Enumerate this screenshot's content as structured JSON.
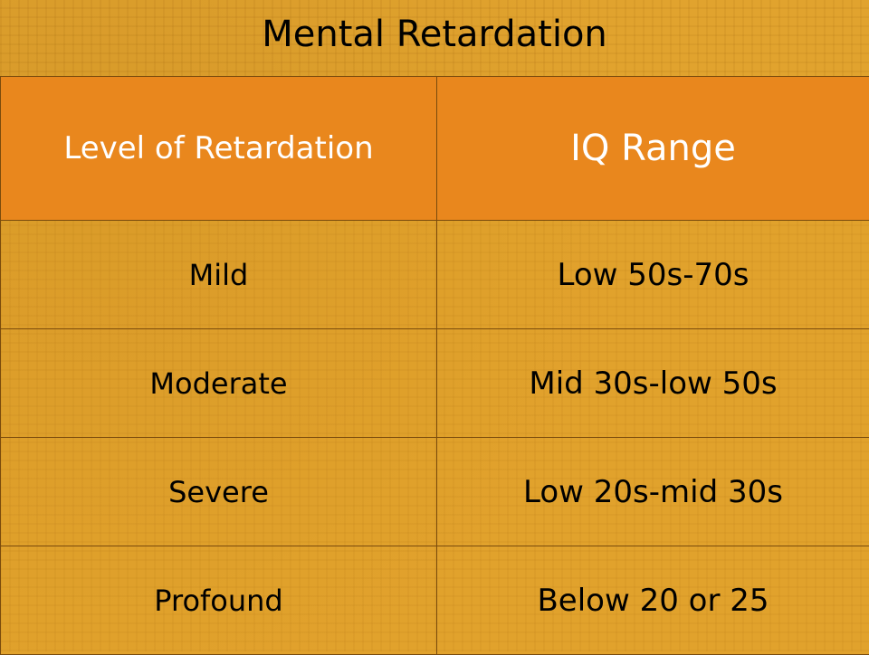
{
  "title": "Mental Retardation",
  "table": {
    "headers": [
      "Level of Retardation",
      "IQ Range"
    ],
    "rows": [
      [
        "Mild",
        "Low 50s-70s"
      ],
      [
        "Moderate",
        "Mid 30s-low 50s"
      ],
      [
        "Severe",
        "Low 20s-mid 30s"
      ],
      [
        "Profound",
        "Below 20 or 25"
      ]
    ]
  },
  "colors": {
    "background": "#e1a32e",
    "header_background": "#e9871d",
    "header_text": "#ffffff",
    "body_text": "#000000",
    "border": "#7a4b0c"
  }
}
